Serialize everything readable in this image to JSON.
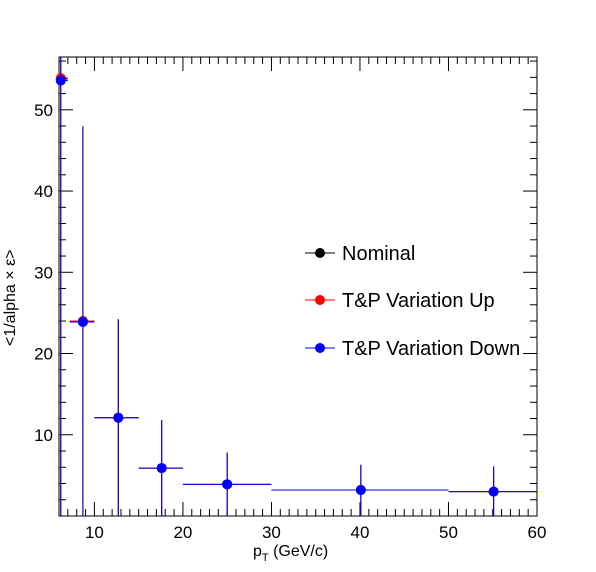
{
  "chart_data": {
    "type": "scatter",
    "title": "",
    "xlabel_main": "p",
    "xlabel_sub": "T",
    "xlabel_rest": " (GeV/c)",
    "ylabel": "<1/alpha × ε>",
    "xlim": [
      6,
      60
    ],
    "ylim": [
      0,
      56.5
    ],
    "xticks": [
      10,
      20,
      30,
      40,
      50,
      60
    ],
    "yticks": [
      10,
      20,
      30,
      40,
      50
    ],
    "grid": false,
    "legend_position": "right",
    "series": [
      {
        "name": "Nominal",
        "color": "#000000",
        "points": [
          {
            "x": 6.2,
            "xerr": [
              0.2,
              0.8
            ],
            "y": 53.8,
            "yerr": [
              53.8,
              2.7
            ]
          },
          {
            "x": 8.7,
            "xerr": [
              1.5,
              1.3
            ],
            "y": 23.9,
            "yerr": [
              23.9,
              24.0
            ]
          },
          {
            "x": 12.7,
            "xerr": [
              2.7,
              2.3
            ],
            "y": 12.1,
            "yerr": [
              12.1,
              12.1
            ]
          },
          {
            "x": 17.6,
            "xerr": [
              2.6,
              2.4
            ],
            "y": 5.9,
            "yerr": [
              5.9,
              5.9
            ]
          },
          {
            "x": 25.0,
            "xerr": [
              5.0,
              5.0
            ],
            "y": 3.9,
            "yerr": [
              3.9,
              3.9
            ]
          },
          {
            "x": 40.1,
            "xerr": [
              10.1,
              9.9
            ],
            "y": 3.2,
            "yerr": [
              3.2,
              3.1
            ]
          },
          {
            "x": 55.1,
            "xerr": [
              5.1,
              4.9
            ],
            "y": 3.0,
            "yerr": [
              3.0,
              3.1
            ]
          }
        ]
      },
      {
        "name": "T&P Variation Up",
        "color": "#ff0000",
        "points": [
          {
            "x": 6.2,
            "xerr": [
              0.2,
              0.8
            ],
            "y": 53.9,
            "yerr": [
              53.9,
              2.6
            ]
          },
          {
            "x": 8.7,
            "xerr": [
              1.5,
              1.3
            ],
            "y": 24.0,
            "yerr": [
              24.0,
              24.0
            ]
          },
          {
            "x": 12.7,
            "xerr": [
              2.7,
              2.3
            ],
            "y": 12.1,
            "yerr": [
              12.1,
              12.1
            ]
          },
          {
            "x": 17.6,
            "xerr": [
              2.6,
              2.4
            ],
            "y": 5.9,
            "yerr": [
              5.9,
              5.9
            ]
          },
          {
            "x": 25.0,
            "xerr": [
              5.0,
              5.0
            ],
            "y": 3.9,
            "yerr": [
              3.9,
              3.9
            ]
          },
          {
            "x": 40.1,
            "xerr": [
              10.1,
              9.9
            ],
            "y": 3.2,
            "yerr": [
              3.2,
              3.1
            ]
          },
          {
            "x": 55.1,
            "xerr": [
              5.1,
              4.9
            ],
            "y": 3.0,
            "yerr": [
              3.0,
              3.1
            ]
          }
        ]
      },
      {
        "name": "T&P Variation Down",
        "color": "#0000ff",
        "points": [
          {
            "x": 6.2,
            "xerr": [
              0.2,
              0.8
            ],
            "y": 53.6,
            "yerr": [
              53.6,
              2.9
            ]
          },
          {
            "x": 8.7,
            "xerr": [
              1.5,
              1.3
            ],
            "y": 23.9,
            "yerr": [
              23.9,
              24.0
            ]
          },
          {
            "x": 12.7,
            "xerr": [
              2.7,
              2.3
            ],
            "y": 12.1,
            "yerr": [
              12.1,
              12.1
            ]
          },
          {
            "x": 17.6,
            "xerr": [
              2.6,
              2.4
            ],
            "y": 5.9,
            "yerr": [
              5.9,
              5.9
            ]
          },
          {
            "x": 25.0,
            "xerr": [
              5.0,
              5.0
            ],
            "y": 3.9,
            "yerr": [
              3.9,
              3.9
            ]
          },
          {
            "x": 40.1,
            "xerr": [
              10.1,
              9.9
            ],
            "y": 3.2,
            "yerr": [
              3.2,
              3.1
            ]
          },
          {
            "x": 55.1,
            "xerr": [
              5.1,
              4.9
            ],
            "y": 3.0,
            "yerr": [
              3.0,
              3.1
            ]
          }
        ]
      }
    ]
  }
}
